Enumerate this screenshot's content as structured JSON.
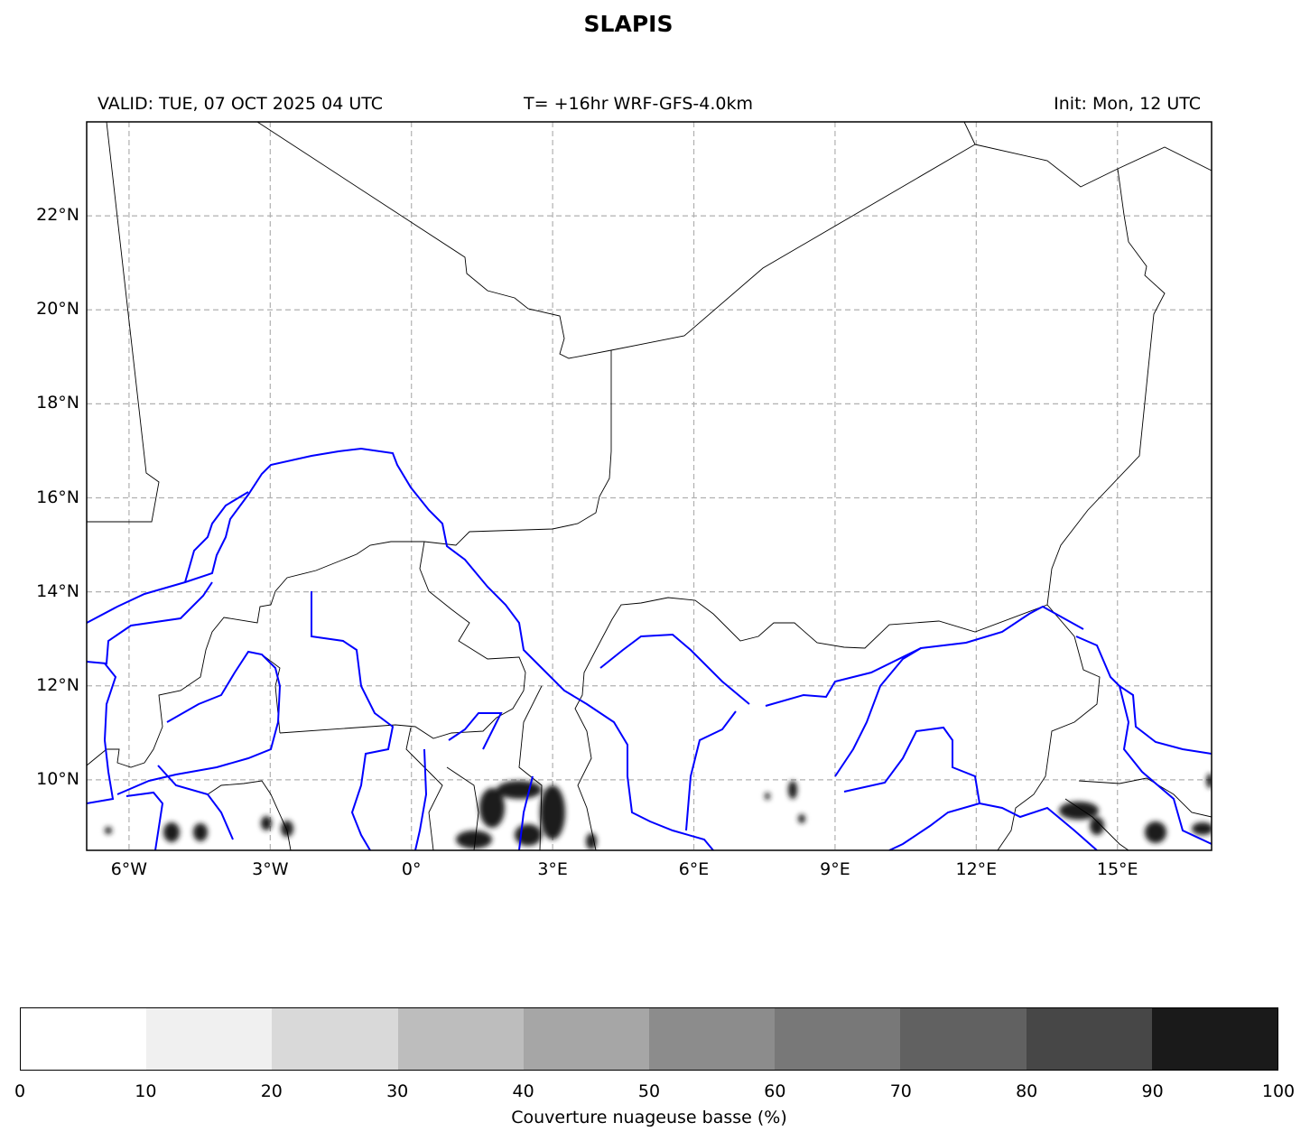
{
  "title": "SLAPIS",
  "subtitle_left": "VALID: TUE, 07 OCT 2025 04 UTC",
  "subtitle_center": "T= +16hr WRF-GFS-4.0km",
  "subtitle_right": "Init: Mon, 12 UTC",
  "map": {
    "lon_ticks": [
      "6°W",
      "3°W",
      "0°",
      "3°E",
      "6°E",
      "9°E",
      "12°E",
      "15°E"
    ],
    "lat_ticks": [
      "22°N",
      "20°N",
      "18°N",
      "16°N",
      "14°N",
      "12°N",
      "10°N"
    ],
    "extent": {
      "lon": [
        -6.9,
        17.0
      ],
      "lat": [
        8.5,
        24.0
      ]
    },
    "gridlines": true,
    "border_color": "#000000",
    "river_color": "#0000ff",
    "field_color": "#1a1a1a"
  },
  "colorbar": {
    "label": "Couverture nuageuse basse (%)",
    "ticks": [
      "0",
      "10",
      "20",
      "30",
      "40",
      "50",
      "60",
      "70",
      "80",
      "90",
      "100"
    ],
    "colors": [
      "#ffffff",
      "#f0f0f0",
      "#d9d9d9",
      "#bdbdbd",
      "#a6a6a6",
      "#8c8c8c",
      "#787878",
      "#616161",
      "#474747",
      "#1a1a1a"
    ]
  }
}
